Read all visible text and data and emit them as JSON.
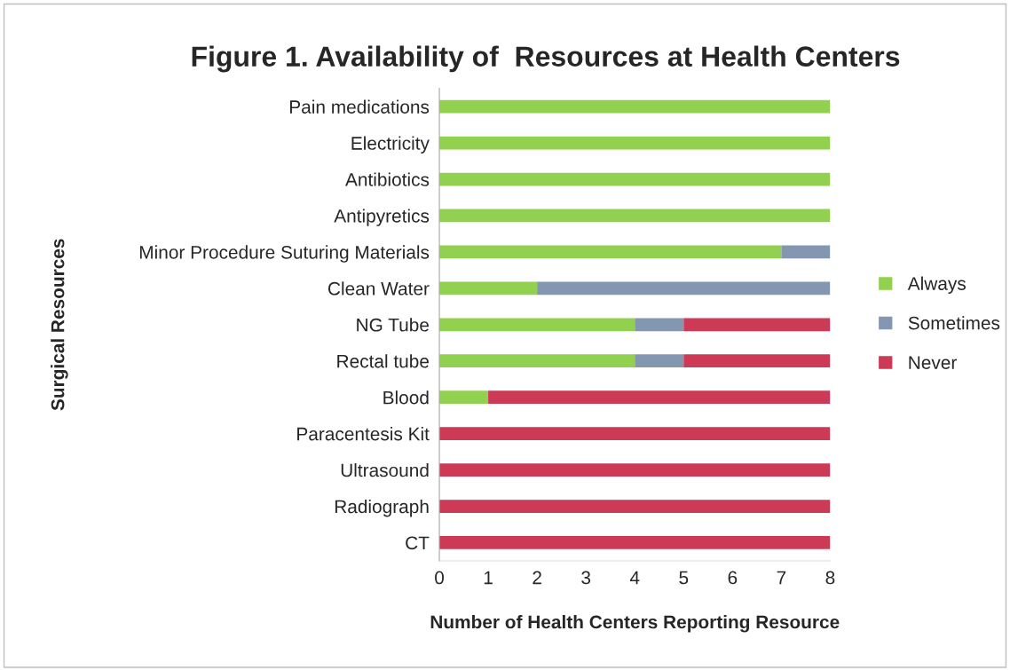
{
  "chart_data": {
    "type": "bar",
    "orientation": "horizontal",
    "stacked": true,
    "title": "Figure 1. Availability of  Resources at Health Centers",
    "xlabel": "Number of Health Centers Reporting Resource",
    "ylabel": "Surgical Resources",
    "categories": [
      "Pain medications",
      "Electricity",
      "Antibiotics",
      "Antipyretics",
      "Minor Procedure Suturing Materials",
      "Clean Water",
      "NG Tube",
      "Rectal tube",
      "Blood",
      "Paracentesis Kit",
      "Ultrasound",
      "Radiograph",
      "CT"
    ],
    "series": [
      {
        "name": "Always",
        "color": "#92d050",
        "values": [
          8,
          8,
          8,
          8,
          7,
          2,
          4,
          4,
          1,
          0,
          0,
          0,
          0
        ]
      },
      {
        "name": "Sometimes",
        "color": "#8497b0",
        "values": [
          0,
          0,
          0,
          0,
          1,
          6,
          1,
          1,
          0,
          0,
          0,
          0,
          0
        ]
      },
      {
        "name": "Never",
        "color": "#cc3a56",
        "values": [
          0,
          0,
          0,
          0,
          0,
          0,
          3,
          3,
          7,
          8,
          8,
          8,
          8
        ]
      }
    ],
    "xlim": [
      0,
      8
    ],
    "xticks": [
      0,
      1,
      2,
      3,
      4,
      5,
      6,
      7,
      8
    ],
    "grid": false,
    "legend": "right"
  }
}
